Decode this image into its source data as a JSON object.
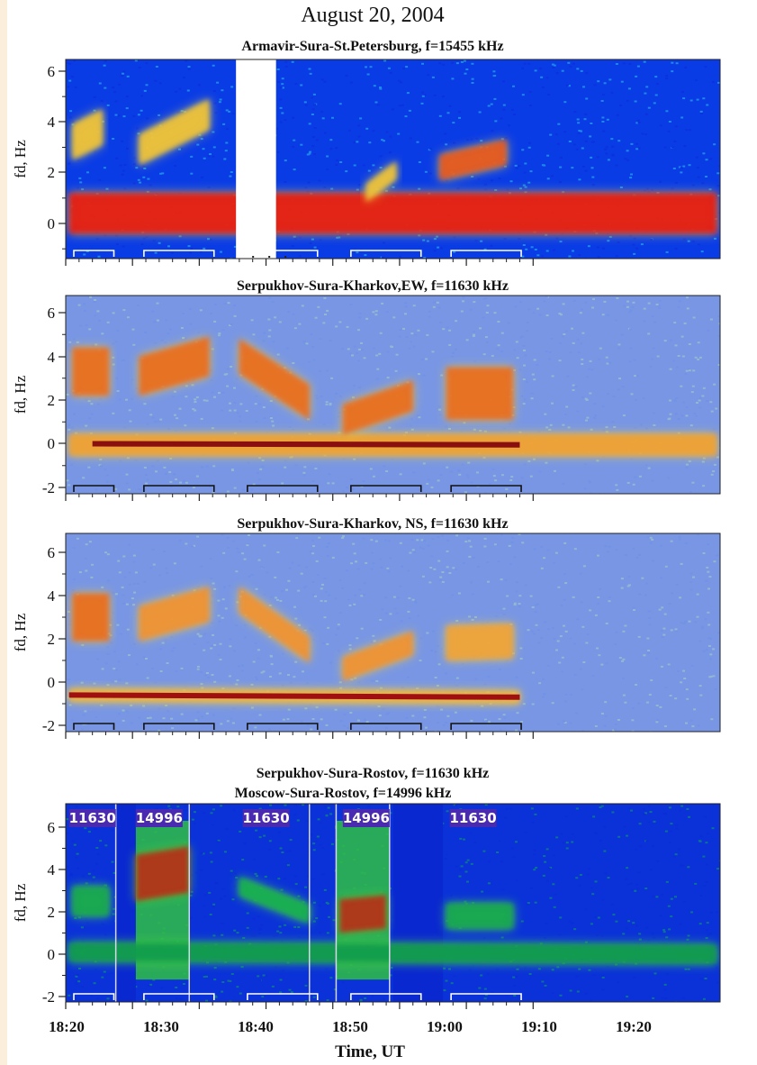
{
  "figure": {
    "title": "August 20, 2004",
    "xlabel": "Time, UT",
    "x_ticks": [
      "18:20",
      "18:30",
      "18:40",
      "18:50",
      "19:00",
      "19:10",
      "19:20"
    ]
  },
  "chart_data": [
    {
      "type": "heatmap",
      "title": "Armavir-Sura-St.Petersburg, f=15455 kHz",
      "ylabel": "fd, Hz",
      "y_ticks": [
        "6",
        "4",
        "2",
        "0"
      ],
      "ylim": [
        -1.4,
        6.5
      ],
      "xlim_min": [
        0,
        98
      ],
      "data_gap_min": [
        [
          25.5,
          31.5
        ]
      ],
      "colormap": [
        "#0a2ad8",
        "#2ec7ea",
        "#f2e23c",
        "#e8220e"
      ],
      "background": "#0a3ce6",
      "features": [
        {
          "t0": 0.5,
          "t1": 97.5,
          "fd0": 0.4,
          "fd1": 0.4,
          "width": 1.6,
          "color": "#e8130d"
        },
        {
          "t0": 1,
          "t1": 5.5,
          "fd0": 3.2,
          "fd1": 3.8,
          "width": 1.4,
          "color": "#f0c238"
        },
        {
          "t0": 11,
          "t1": 21.5,
          "fd0": 2.9,
          "fd1": 4.3,
          "width": 1.2,
          "color": "#f0c238"
        },
        {
          "t0": 45,
          "t1": 49.5,
          "fd0": 1.2,
          "fd1": 2.1,
          "width": 0.7,
          "color": "#f0c238"
        },
        {
          "t0": 56,
          "t1": 66,
          "fd0": 2.2,
          "fd1": 2.8,
          "width": 1.0,
          "color": "#e8541a"
        }
      ],
      "heating_on_min": [
        [
          0,
          6
        ],
        [
          10.5,
          21
        ],
        [
          26,
          36.5
        ],
        [
          41.5,
          52
        ],
        [
          56.5,
          67
        ]
      ]
    },
    {
      "type": "heatmap",
      "title": "Serpukhov-Sura-Kharkov,EW, f=11630 kHz",
      "ylabel": "fd, Hz",
      "y_ticks": [
        "6",
        "4",
        "2",
        "0",
        "-2"
      ],
      "ylim": [
        -2.2,
        6.8
      ],
      "xlim_min": [
        0,
        98
      ],
      "colormap": [
        "#6f8fe6",
        "#a8d2c4",
        "#f2d23c",
        "#e0280e"
      ],
      "background": "#7896e4",
      "features": [
        {
          "t0": 0.5,
          "t1": 97.5,
          "fd0": -0.05,
          "fd1": -0.05,
          "width": 1.0,
          "color": "#f0a030"
        },
        {
          "t0": 4,
          "t1": 68,
          "fd0": 0.0,
          "fd1": -0.05,
          "width": 0.25,
          "color": "#8a1010"
        },
        {
          "t0": 1,
          "t1": 6.5,
          "fd0": 3.3,
          "fd1": 3.3,
          "width": 2.2,
          "color": "#ea6a1e"
        },
        {
          "t0": 11,
          "t1": 21.5,
          "fd0": 3.1,
          "fd1": 4.0,
          "width": 1.8,
          "color": "#ea6a1e"
        },
        {
          "t0": 26,
          "t1": 36.5,
          "fd0": 4.0,
          "fd1": 1.9,
          "width": 1.6,
          "color": "#ea6a1e"
        },
        {
          "t0": 41.5,
          "t1": 52,
          "fd0": 1.1,
          "fd1": 2.2,
          "width": 1.4,
          "color": "#ea6a1e"
        },
        {
          "t0": 57,
          "t1": 67,
          "fd0": 2.3,
          "fd1": 2.3,
          "width": 2.4,
          "color": "#ea6a1e"
        }
      ],
      "heating_on_min": [
        [
          0,
          6
        ],
        [
          10.5,
          21
        ],
        [
          26,
          36.5
        ],
        [
          41.5,
          52
        ],
        [
          56.5,
          67
        ]
      ]
    },
    {
      "type": "heatmap",
      "title": "Serpukhov-Sura-Kharkov, NS, f=11630 kHz",
      "ylabel": "fd, Hz",
      "y_ticks": [
        "6",
        "4",
        "2",
        "0",
        "-2"
      ],
      "ylim": [
        -2.2,
        6.8
      ],
      "xlim_min": [
        0,
        98
      ],
      "colormap": [
        "#6f8fe6",
        "#a8d2c4",
        "#f2d23c",
        "#e0280e"
      ],
      "background": "#7896e4",
      "features": [
        {
          "t0": 0.5,
          "t1": 68,
          "fd0": -0.6,
          "fd1": -0.7,
          "width": 0.6,
          "color": "#f0b440"
        },
        {
          "t0": 0.5,
          "t1": 68,
          "fd0": -0.6,
          "fd1": -0.7,
          "width": 0.25,
          "color": "#a01010"
        },
        {
          "t0": 1,
          "t1": 6.5,
          "fd0": 3.0,
          "fd1": 3.0,
          "width": 2.2,
          "color": "#ea6a1e"
        },
        {
          "t0": 11,
          "t1": 21.5,
          "fd0": 2.7,
          "fd1": 3.6,
          "width": 1.6,
          "color": "#f09030"
        },
        {
          "t0": 26,
          "t1": 36.5,
          "fd0": 3.8,
          "fd1": 1.5,
          "width": 1.2,
          "color": "#f09030"
        },
        {
          "t0": 41.5,
          "t1": 52,
          "fd0": 0.6,
          "fd1": 1.8,
          "width": 1.1,
          "color": "#f09030"
        },
        {
          "t0": 57,
          "t1": 67,
          "fd0": 1.8,
          "fd1": 1.9,
          "width": 1.6,
          "color": "#f0a238"
        }
      ],
      "heating_on_min": [
        [
          0,
          6
        ],
        [
          10.5,
          21
        ],
        [
          26,
          36.5
        ],
        [
          41.5,
          52
        ],
        [
          56.5,
          67
        ]
      ]
    },
    {
      "type": "heatmap",
      "title": "Serpukhov-Sura-Rostov, f=11630 kHz",
      "subtitle": "Moscow-Sura-Rostov, f=14996 kHz",
      "ylabel": "fd, Hz",
      "y_ticks": [
        "6",
        "4",
        "2",
        "0",
        "-2"
      ],
      "ylim": [
        -2.2,
        6.8
      ],
      "xlim_min": [
        0,
        98
      ],
      "colormap": [
        "#0a2ad8",
        "#0ea85a",
        "#5ce23a",
        "#c01a10"
      ],
      "background": "#0a32d8",
      "segment_labels": [
        {
          "text": "11630",
          "t": 0.5
        },
        {
          "text": "14996",
          "t": 10.5
        },
        {
          "text": "11630",
          "t": 26.5
        },
        {
          "text": "14996",
          "t": 41.5
        },
        {
          "text": "11630",
          "t": 57.5
        }
      ],
      "bright_segments_min": [
        [
          10.5,
          18.5
        ],
        [
          40.5,
          48.5
        ]
      ],
      "dark_segments_min": [
        [
          7.5,
          10.5
        ],
        [
          49,
          56.5
        ]
      ],
      "features": [
        {
          "t0": 0.5,
          "t1": 97.5,
          "fd0": 0.1,
          "fd1": 0.0,
          "width": 0.9,
          "color": "#0f9a4e"
        },
        {
          "t0": 1,
          "t1": 6.5,
          "fd0": 2.5,
          "fd1": 2.5,
          "width": 1.4,
          "color": "#13a850"
        },
        {
          "t0": 10.5,
          "t1": 18.5,
          "fd0": 3.6,
          "fd1": 4.0,
          "width": 2.2,
          "color": "#b82a12"
        },
        {
          "t0": 26,
          "t1": 36.5,
          "fd0": 3.2,
          "fd1": 1.9,
          "width": 0.9,
          "color": "#17b050"
        },
        {
          "t0": 41,
          "t1": 48,
          "fd0": 1.8,
          "fd1": 2.0,
          "width": 1.6,
          "color": "#b82a12"
        },
        {
          "t0": 57,
          "t1": 67,
          "fd0": 1.8,
          "fd1": 1.8,
          "width": 1.2,
          "color": "#13a850"
        }
      ],
      "heating_on_min": [
        [
          0,
          6
        ],
        [
          10.5,
          21
        ],
        [
          26,
          36.5
        ],
        [
          41.5,
          52
        ],
        [
          56.5,
          67
        ]
      ]
    }
  ]
}
